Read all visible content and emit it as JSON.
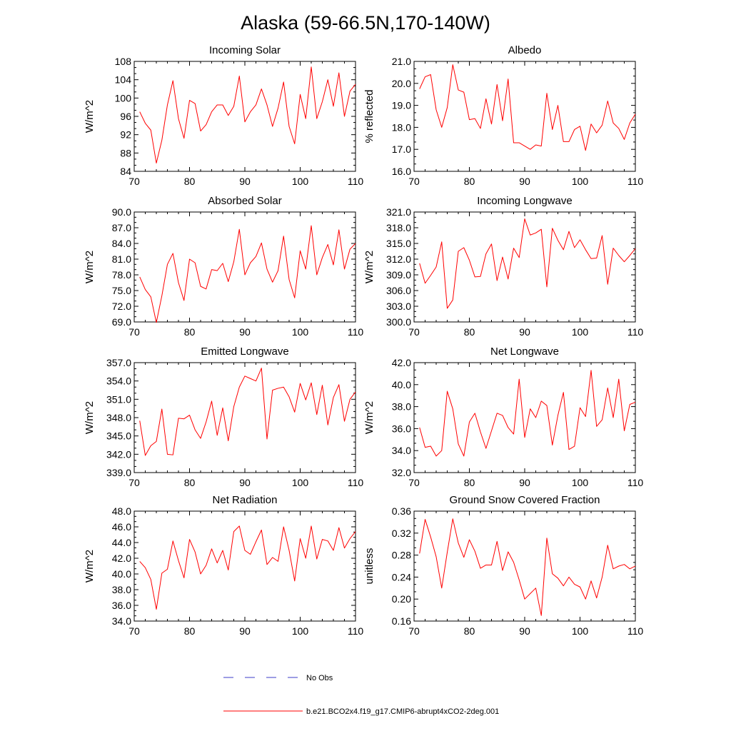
{
  "figure_title": "Alaska (59-66.5N,170-140W)",
  "colors": {
    "series": "#ff0000",
    "obs": "#3c3cc8",
    "axis": "#000000"
  },
  "legend": [
    {
      "label": "No Obs",
      "style": "dashed",
      "color": "#3c3cc8"
    },
    {
      "label": "b.e21.BCO2x4.f19_g17.CMIP6-abrupt4xCO2-2deg.001",
      "style": "solid",
      "color": "#ff0000"
    }
  ],
  "chart_data": [
    {
      "type": "line",
      "title": "Incoming Solar",
      "ylabel": "W/m^2",
      "xlim": [
        70,
        110
      ],
      "ylim": [
        84,
        108
      ],
      "xticks": [
        70,
        80,
        90,
        100,
        110
      ],
      "yticks": [
        84,
        88,
        92,
        96,
        100,
        104,
        108
      ],
      "ytick_decimals": 0,
      "x": [
        71,
        72,
        73,
        74,
        75,
        76,
        77,
        78,
        79,
        80,
        81,
        82,
        83,
        84,
        85,
        86,
        87,
        88,
        89,
        90,
        91,
        92,
        93,
        94,
        95,
        96,
        97,
        98,
        99,
        100,
        101,
        102,
        103,
        104,
        105,
        106,
        107,
        108,
        109,
        110
      ],
      "series": [
        {
          "name": "b.e21.BCO2x4.f19_g17.CMIP6-abrupt4xCO2-2deg.001",
          "values": [
            97.0,
            94.5,
            93.0,
            85.8,
            90.8,
            98.5,
            103.8,
            95.5,
            91.2,
            99.5,
            98.8,
            92.8,
            94.2,
            97.0,
            98.5,
            98.5,
            96.2,
            98.2,
            104.8,
            94.8,
            97.0,
            98.5,
            102.0,
            98.5,
            93.8,
            97.8,
            103.5,
            93.8,
            90.0,
            100.8,
            95.5,
            106.8,
            95.5,
            99.2,
            104.0,
            98.2,
            105.5,
            96.0,
            101.5,
            103.0
          ]
        }
      ]
    },
    {
      "type": "line",
      "title": "Albedo",
      "ylabel": "% reflected",
      "xlim": [
        70,
        110
      ],
      "ylim": [
        16.0,
        21.0
      ],
      "xticks": [
        70,
        80,
        90,
        100,
        110
      ],
      "yticks": [
        16.0,
        17.0,
        18.0,
        19.0,
        20.0,
        21.0
      ],
      "ytick_decimals": 1,
      "x": [
        71,
        72,
        73,
        74,
        75,
        76,
        77,
        78,
        79,
        80,
        81,
        82,
        83,
        84,
        85,
        86,
        87,
        88,
        89,
        90,
        91,
        92,
        93,
        94,
        95,
        96,
        97,
        98,
        99,
        100,
        101,
        102,
        103,
        104,
        105,
        106,
        107,
        108,
        109,
        110
      ],
      "series": [
        {
          "name": "b.e21.BCO2x4.f19_g17.CMIP6-abrupt4xCO2-2deg.001",
          "values": [
            19.75,
            20.3,
            20.4,
            18.8,
            18.0,
            18.9,
            20.85,
            19.7,
            19.6,
            18.35,
            18.4,
            17.95,
            19.3,
            18.15,
            19.95,
            18.3,
            20.2,
            17.3,
            17.3,
            17.15,
            17.0,
            17.2,
            17.15,
            19.55,
            17.9,
            19.0,
            17.35,
            17.35,
            17.9,
            18.05,
            16.95,
            18.15,
            17.75,
            18.1,
            19.2,
            18.2,
            17.95,
            17.45,
            18.2,
            18.6
          ]
        }
      ]
    },
    {
      "type": "line",
      "title": "Absorbed Solar",
      "ylabel": "W/m^2",
      "xlim": [
        70,
        110
      ],
      "ylim": [
        69.0,
        90.0
      ],
      "xticks": [
        70,
        80,
        90,
        100,
        110
      ],
      "yticks": [
        69.0,
        72.0,
        75.0,
        78.0,
        81.0,
        84.0,
        87.0,
        90.0
      ],
      "ytick_decimals": 1,
      "x": [
        71,
        72,
        73,
        74,
        75,
        76,
        77,
        78,
        79,
        80,
        81,
        82,
        83,
        84,
        85,
        86,
        87,
        88,
        89,
        90,
        91,
        92,
        93,
        94,
        95,
        96,
        97,
        98,
        99,
        100,
        101,
        102,
        103,
        104,
        105,
        106,
        107,
        108,
        109,
        110
      ],
      "series": [
        {
          "name": "b.e21.BCO2x4.f19_g17.CMIP6-abrupt4xCO2-2deg.001",
          "values": [
            77.6,
            75.2,
            73.8,
            68.9,
            74.0,
            80.0,
            82.1,
            76.5,
            73.1,
            81.0,
            80.3,
            75.8,
            75.3,
            79.0,
            78.8,
            80.2,
            76.7,
            80.5,
            86.7,
            78.0,
            80.3,
            81.5,
            84.1,
            79.1,
            76.6,
            78.8,
            85.4,
            77.1,
            73.6,
            82.6,
            79.1,
            87.4,
            78.0,
            81.3,
            83.8,
            79.9,
            86.6,
            79.1,
            82.9,
            84.0
          ]
        }
      ]
    },
    {
      "type": "line",
      "title": "Incoming Longwave",
      "ylabel": "W/m^2",
      "xlim": [
        70,
        110
      ],
      "ylim": [
        300.0,
        321.0
      ],
      "xticks": [
        70,
        80,
        90,
        100,
        110
      ],
      "yticks": [
        300.0,
        303.0,
        306.0,
        309.0,
        312.0,
        315.0,
        318.0,
        321.0
      ],
      "ytick_decimals": 1,
      "x": [
        71,
        72,
        73,
        74,
        75,
        76,
        77,
        78,
        79,
        80,
        81,
        82,
        83,
        84,
        85,
        86,
        87,
        88,
        89,
        90,
        91,
        92,
        93,
        94,
        95,
        96,
        97,
        98,
        99,
        100,
        101,
        102,
        103,
        104,
        105,
        106,
        107,
        108,
        109,
        110
      ],
      "series": [
        {
          "name": "b.e21.BCO2x4.f19_g17.CMIP6-abrupt4xCO2-2deg.001",
          "values": [
            311.2,
            307.4,
            308.9,
            310.5,
            315.3,
            302.6,
            304.2,
            313.5,
            314.2,
            311.8,
            308.6,
            308.7,
            313.0,
            314.9,
            307.9,
            312.4,
            308.2,
            314.1,
            312.3,
            319.7,
            316.6,
            317.0,
            317.7,
            306.7,
            317.9,
            315.6,
            313.8,
            317.3,
            314.2,
            315.7,
            313.8,
            312.1,
            312.2,
            316.5,
            307.2,
            314.1,
            312.7,
            311.5,
            312.7,
            314.0
          ]
        }
      ]
    },
    {
      "type": "line",
      "title": "Emitted Longwave",
      "ylabel": "W/m^2",
      "xlim": [
        70,
        110
      ],
      "ylim": [
        339.0,
        357.0
      ],
      "xticks": [
        70,
        80,
        90,
        100,
        110
      ],
      "yticks": [
        339.0,
        342.0,
        345.0,
        348.0,
        351.0,
        354.0,
        357.0
      ],
      "ytick_decimals": 1,
      "x": [
        71,
        72,
        73,
        74,
        75,
        76,
        77,
        78,
        79,
        80,
        81,
        82,
        83,
        84,
        85,
        86,
        87,
        88,
        89,
        90,
        91,
        92,
        93,
        94,
        95,
        96,
        97,
        98,
        99,
        100,
        101,
        102,
        103,
        104,
        105,
        106,
        107,
        108,
        109,
        110
      ],
      "series": [
        {
          "name": "b.e21.BCO2x4.f19_g17.CMIP6-abrupt4xCO2-2deg.001",
          "values": [
            347.5,
            341.8,
            343.4,
            344.1,
            349.4,
            342.0,
            341.9,
            347.9,
            347.8,
            348.4,
            346.0,
            344.6,
            347.3,
            350.7,
            345.1,
            349.6,
            344.2,
            349.8,
            353.0,
            354.8,
            354.4,
            354.0,
            356.1,
            344.5,
            352.5,
            352.8,
            353.0,
            351.4,
            348.9,
            353.6,
            350.9,
            353.7,
            348.5,
            353.3,
            346.8,
            351.3,
            353.4,
            347.4,
            351.0,
            352.2
          ]
        }
      ]
    },
    {
      "type": "line",
      "title": "Net Longwave",
      "ylabel": "W/m^2",
      "xlim": [
        70,
        110
      ],
      "ylim": [
        32.0,
        42.0
      ],
      "xticks": [
        70,
        80,
        90,
        100,
        110
      ],
      "yticks": [
        32.0,
        34.0,
        36.0,
        38.0,
        40.0,
        42.0
      ],
      "ytick_decimals": 1,
      "x": [
        71,
        72,
        73,
        74,
        75,
        76,
        77,
        78,
        79,
        80,
        81,
        82,
        83,
        84,
        85,
        86,
        87,
        88,
        89,
        90,
        91,
        92,
        93,
        94,
        95,
        96,
        97,
        98,
        99,
        100,
        101,
        102,
        103,
        104,
        105,
        106,
        107,
        108,
        109,
        110
      ],
      "series": [
        {
          "name": "b.e21.BCO2x4.f19_g17.CMIP6-abrupt4xCO2-2deg.001",
          "values": [
            36.1,
            34.3,
            34.4,
            33.5,
            34.0,
            39.4,
            37.8,
            34.6,
            33.5,
            36.6,
            37.4,
            35.7,
            34.2,
            35.8,
            37.4,
            37.2,
            36.1,
            35.5,
            40.5,
            35.2,
            37.8,
            37.0,
            38.5,
            38.1,
            34.5,
            37.2,
            39.3,
            34.1,
            34.4,
            37.9,
            37.1,
            41.3,
            36.2,
            36.8,
            39.7,
            37.0,
            40.5,
            35.8,
            38.2,
            38.4
          ]
        }
      ]
    },
    {
      "type": "line",
      "title": "Net Radiation",
      "ylabel": "W/m^2",
      "xlim": [
        70,
        110
      ],
      "ylim": [
        34.0,
        48.0
      ],
      "xticks": [
        70,
        80,
        90,
        100,
        110
      ],
      "yticks": [
        34.0,
        36.0,
        38.0,
        40.0,
        42.0,
        44.0,
        46.0,
        48.0
      ],
      "ytick_decimals": 1,
      "x": [
        71,
        72,
        73,
        74,
        75,
        76,
        77,
        78,
        79,
        80,
        81,
        82,
        83,
        84,
        85,
        86,
        87,
        88,
        89,
        90,
        91,
        92,
        93,
        94,
        95,
        96,
        97,
        98,
        99,
        100,
        101,
        102,
        103,
        104,
        105,
        106,
        107,
        108,
        109,
        110
      ],
      "series": [
        {
          "name": "b.e21.BCO2x4.f19_g17.CMIP6-abrupt4xCO2-2deg.001",
          "values": [
            41.6,
            40.8,
            39.3,
            35.5,
            40.1,
            40.6,
            44.2,
            41.7,
            39.5,
            44.4,
            42.8,
            40.0,
            41.1,
            43.2,
            41.4,
            43.0,
            40.5,
            45.4,
            46.1,
            43.0,
            42.5,
            44.1,
            45.6,
            41.2,
            42.1,
            41.6,
            46.0,
            43.0,
            39.1,
            44.5,
            42.0,
            46.1,
            41.9,
            44.4,
            44.2,
            43.0,
            45.9,
            43.3,
            44.5,
            45.4
          ]
        }
      ]
    },
    {
      "type": "line",
      "title": "Ground Snow Covered Fraction",
      "ylabel": "unitless",
      "xlim": [
        70,
        110
      ],
      "ylim": [
        0.16,
        0.36
      ],
      "xticks": [
        70,
        80,
        90,
        100,
        110
      ],
      "yticks": [
        0.16,
        0.2,
        0.24,
        0.28,
        0.32,
        0.36
      ],
      "ytick_decimals": 2,
      "x": [
        71,
        72,
        73,
        74,
        75,
        76,
        77,
        78,
        79,
        80,
        81,
        82,
        83,
        84,
        85,
        86,
        87,
        88,
        89,
        90,
        91,
        92,
        93,
        94,
        95,
        96,
        97,
        98,
        99,
        100,
        101,
        102,
        103,
        104,
        105,
        106,
        107,
        108,
        109,
        110
      ],
      "series": [
        {
          "name": "b.e21.BCO2x4.f19_g17.CMIP6-abrupt4xCO2-2deg.001",
          "values": [
            0.283,
            0.345,
            0.313,
            0.277,
            0.22,
            0.285,
            0.346,
            0.302,
            0.276,
            0.308,
            0.287,
            0.256,
            0.262,
            0.262,
            0.305,
            0.252,
            0.286,
            0.267,
            0.235,
            0.2,
            0.21,
            0.22,
            0.17,
            0.311,
            0.246,
            0.238,
            0.224,
            0.24,
            0.227,
            0.222,
            0.2,
            0.233,
            0.202,
            0.24,
            0.298,
            0.255,
            0.26,
            0.263,
            0.255,
            0.26
          ]
        }
      ]
    }
  ]
}
